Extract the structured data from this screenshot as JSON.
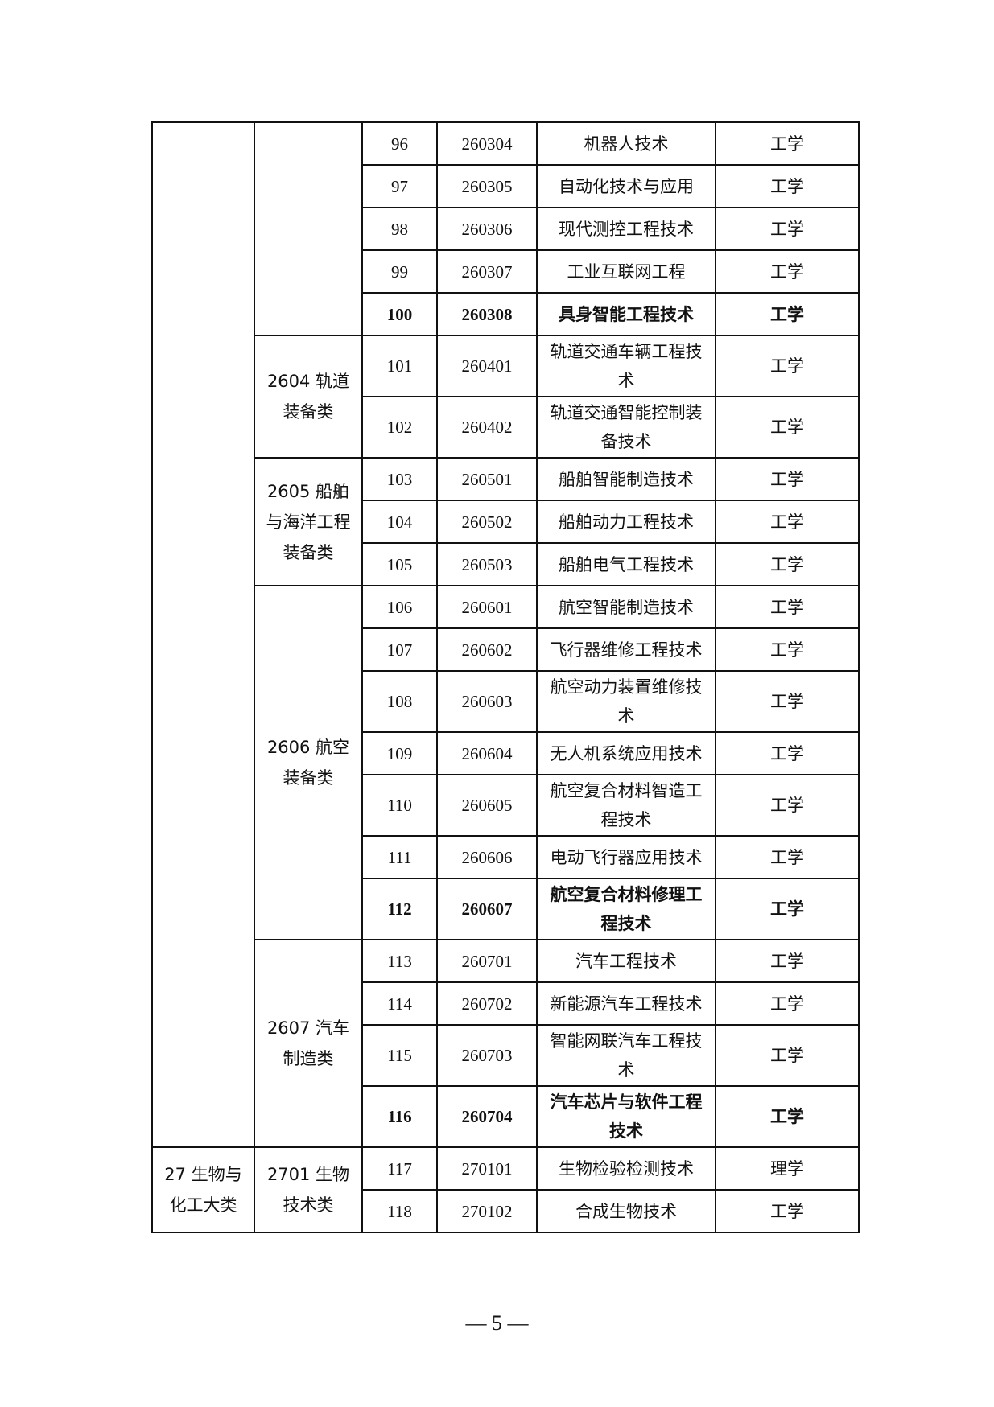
{
  "groups_level1": [
    {
      "label": "",
      "rows": 21
    },
    {
      "label": "27 生物与化工大类",
      "rows": 2
    }
  ],
  "groups_level2": [
    {
      "label": "",
      "rows": 5
    },
    {
      "label": "2604 轨道装备类",
      "rows": 2
    },
    {
      "label": "2605 船舶与海洋工程装备类",
      "rows": 3
    },
    {
      "label": "2606 航空装备类",
      "rows": 7
    },
    {
      "label": "2607 汽车制造类",
      "rows": 4
    },
    {
      "label": "2701 生物技术类",
      "rows": 2
    }
  ],
  "rows": [
    {
      "no": "96",
      "code": "260304",
      "name": "机器人技术",
      "degree": "工学",
      "bold": false
    },
    {
      "no": "97",
      "code": "260305",
      "name": "自动化技术与应用",
      "degree": "工学",
      "bold": false
    },
    {
      "no": "98",
      "code": "260306",
      "name": "现代测控工程技术",
      "degree": "工学",
      "bold": false
    },
    {
      "no": "99",
      "code": "260307",
      "name": "工业互联网工程",
      "degree": "工学",
      "bold": false
    },
    {
      "no": "100",
      "code": "260308",
      "name": "具身智能工程技术",
      "degree": "工学",
      "bold": true
    },
    {
      "no": "101",
      "code": "260401",
      "name": "轨道交通车辆工程技术",
      "degree": "工学",
      "bold": false
    },
    {
      "no": "102",
      "code": "260402",
      "name": "轨道交通智能控制装备技术",
      "degree": "工学",
      "bold": false
    },
    {
      "no": "103",
      "code": "260501",
      "name": "船舶智能制造技术",
      "degree": "工学",
      "bold": false
    },
    {
      "no": "104",
      "code": "260502",
      "name": "船舶动力工程技术",
      "degree": "工学",
      "bold": false
    },
    {
      "no": "105",
      "code": "260503",
      "name": "船舶电气工程技术",
      "degree": "工学",
      "bold": false
    },
    {
      "no": "106",
      "code": "260601",
      "name": "航空智能制造技术",
      "degree": "工学",
      "bold": false
    },
    {
      "no": "107",
      "code": "260602",
      "name": "飞行器维修工程技术",
      "degree": "工学",
      "bold": false
    },
    {
      "no": "108",
      "code": "260603",
      "name": "航空动力装置维修技术",
      "degree": "工学",
      "bold": false
    },
    {
      "no": "109",
      "code": "260604",
      "name": "无人机系统应用技术",
      "degree": "工学",
      "bold": false
    },
    {
      "no": "110",
      "code": "260605",
      "name": "航空复合材料智造工程技术",
      "degree": "工学",
      "bold": false
    },
    {
      "no": "111",
      "code": "260606",
      "name": "电动飞行器应用技术",
      "degree": "工学",
      "bold": false
    },
    {
      "no": "112",
      "code": "260607",
      "name": "航空复合材料修理工程技术",
      "degree": "工学",
      "bold": true
    },
    {
      "no": "113",
      "code": "260701",
      "name": "汽车工程技术",
      "degree": "工学",
      "bold": false
    },
    {
      "no": "114",
      "code": "260702",
      "name": "新能源汽车工程技术",
      "degree": "工学",
      "bold": false
    },
    {
      "no": "115",
      "code": "260703",
      "name": "智能网联汽车工程技术",
      "degree": "工学",
      "bold": false
    },
    {
      "no": "116",
      "code": "260704",
      "name": "汽车芯片与软件工程技术",
      "degree": "工学",
      "bold": true
    },
    {
      "no": "117",
      "code": "270101",
      "name": "生物检验检测技术",
      "degree": "理学",
      "bold": false
    },
    {
      "no": "118",
      "code": "270102",
      "name": "合成生物技术",
      "degree": "工学",
      "bold": false
    }
  ],
  "footer": {
    "page_number": "— 5 —"
  }
}
